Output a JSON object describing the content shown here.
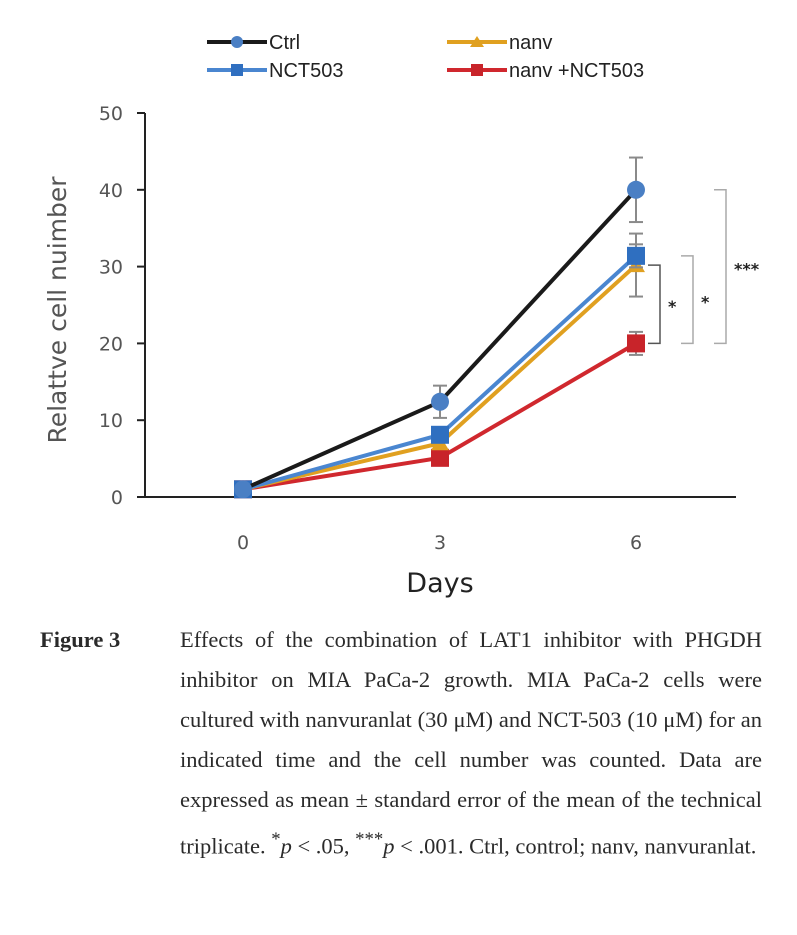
{
  "chart_data": {
    "type": "line",
    "title": "",
    "xlabel": "Days",
    "ylabel": "Relattve cell nuimber",
    "x": [
      0,
      3,
      6
    ],
    "x_tick_labels": [
      "0",
      "3",
      "6"
    ],
    "ylim": [
      0,
      50
    ],
    "y_ticks": [
      0,
      10,
      20,
      30,
      40,
      50
    ],
    "y_tick_labels": [
      "0",
      "10",
      "20",
      "30",
      "40",
      "50"
    ],
    "grid": false,
    "legend_position": "top",
    "series": [
      {
        "name": "Ctrl",
        "line_color": "#1a1a1a",
        "marker_color": "#4a7fc4",
        "marker": "circle",
        "values": [
          1.0,
          12.4,
          40.0
        ],
        "errors": [
          0,
          2.1,
          4.2
        ]
      },
      {
        "name": "NCT503",
        "line_color": "#4a86d0",
        "marker_color": "#2f6fc0",
        "marker": "square",
        "values": [
          1.0,
          8.1,
          31.4
        ],
        "errors": [
          0,
          0.8,
          1.5
        ]
      },
      {
        "name": "nanv",
        "line_color": "#e0a020",
        "marker_color": "#e0a020",
        "marker": "triangle",
        "values": [
          1.0,
          7.0,
          30.2
        ],
        "errors": [
          0,
          0.7,
          4.1
        ]
      },
      {
        "name": "nanv +NCT503",
        "line_color": "#d0282e",
        "marker_color": "#c8242a",
        "marker": "square",
        "values": [
          1.0,
          5.1,
          20.0
        ],
        "errors": [
          0,
          0.6,
          1.5
        ]
      }
    ],
    "annotations": [
      {
        "label": "*",
        "from_series": "nanv",
        "to_series": "nanv +NCT503",
        "x": 6
      },
      {
        "label": "*",
        "from_series": "NCT503",
        "to_series": "nanv +NCT503",
        "x": 6
      },
      {
        "label": "***",
        "from_series": "Ctrl",
        "to_series": "nanv +NCT503",
        "x": 6
      }
    ]
  },
  "caption": {
    "label": "Figure 3",
    "text_before": "Effects of the combination of LAT1 inhibitor with PHGDH inhibitor on MIA PaCa-2 growth. MIA PaCa-2 cells were cultured with nanvuranlat (30 μM) and NCT-503 (10 μM) for an indicated time and the cell number was counted. Data are expressed as mean ± standard error of the mean of the technical triplicate. ",
    "sig1_marker": "*",
    "sig1_p": "p",
    "sig1_rest": " < .05, ",
    "sig2_marker": "***",
    "sig2_p": "p",
    "sig2_rest": " < .001. Ctrl, control; nanv, nanvuranlat."
  }
}
